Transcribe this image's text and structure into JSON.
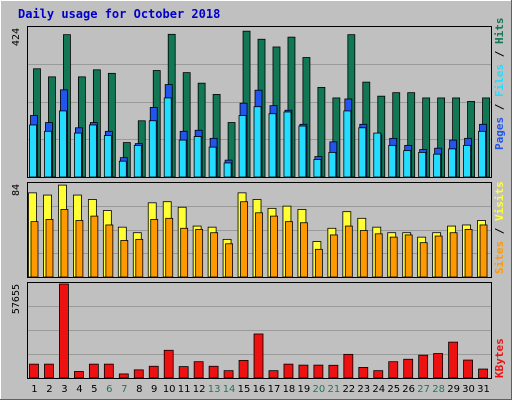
{
  "title": "Daily usage for October 2018",
  "colors": {
    "background": "#c0c0c0",
    "pages": "#2255ee",
    "files": "#22ddff",
    "hits": "#117755",
    "sites": "#ff9900",
    "visits": "#ffff33",
    "kbytes": "#ee1111",
    "weekday_label": "#000000",
    "weekend_label": "#227755"
  },
  "legend": {
    "top": {
      "pages": "Pages",
      "sep1": " / ",
      "files": "Files",
      "sep2": " / ",
      "hits": "Hits"
    },
    "middle": {
      "sites": "Sites",
      "sep": " / ",
      "visits": "Visits"
    },
    "bottom": {
      "kbytes": "KBytes"
    }
  },
  "chart_data": [
    {
      "type": "bar",
      "panel": "top",
      "ymax_label": "424",
      "ylim": [
        0,
        424
      ],
      "categories": [
        "1",
        "2",
        "3",
        "4",
        "5",
        "6",
        "7",
        "8",
        "9",
        "10",
        "11",
        "12",
        "13",
        "14",
        "15",
        "16",
        "17",
        "18",
        "19",
        "20",
        "21",
        "22",
        "23",
        "24",
        "25",
        "26",
        "27",
        "28",
        "29",
        "30",
        "31"
      ],
      "weekend": [
        "6",
        "7",
        "13",
        "14",
        "20",
        "21",
        "27",
        "28"
      ],
      "series": [
        {
          "name": "Hits",
          "values": [
            308,
            285,
            405,
            285,
            305,
            295,
            98,
            160,
            303,
            406,
            297,
            267,
            235,
            155,
            415,
            392,
            370,
            398,
            340,
            255,
            225,
            405,
            270,
            230,
            240,
            240,
            225,
            225,
            225,
            215,
            225
          ]
        },
        {
          "name": "Pages",
          "values": [
            175,
            155,
            248,
            140,
            155,
            130,
            55,
            95,
            198,
            263,
            130,
            133,
            110,
            48,
            210,
            247,
            203,
            190,
            150,
            58,
            100,
            222,
            150,
            120,
            110,
            90,
            78,
            82,
            105,
            110,
            150
          ]
        },
        {
          "name": "Files",
          "values": [
            148,
            130,
            188,
            125,
            148,
            118,
            45,
            90,
            160,
            225,
            105,
            115,
            85,
            40,
            175,
            200,
            180,
            185,
            145,
            50,
            70,
            188,
            140,
            125,
            90,
            75,
            70,
            65,
            80,
            90,
            130
          ]
        }
      ]
    },
    {
      "type": "bar",
      "panel": "middle",
      "ymax_label": "84",
      "ylim": [
        0,
        84
      ],
      "categories": [
        "1",
        "2",
        "3",
        "4",
        "5",
        "6",
        "7",
        "8",
        "9",
        "10",
        "11",
        "12",
        "13",
        "14",
        "15",
        "16",
        "17",
        "18",
        "19",
        "20",
        "21",
        "22",
        "23",
        "24",
        "25",
        "26",
        "27",
        "28",
        "29",
        "30",
        "31"
      ],
      "series": [
        {
          "name": "Visits",
          "values": [
            76,
            74,
            83,
            74,
            70,
            60,
            45,
            40,
            67,
            68,
            63,
            46,
            45,
            34,
            76,
            70,
            62,
            64,
            61,
            32,
            44,
            59,
            53,
            45,
            40,
            40,
            36,
            40,
            46,
            47,
            51
          ]
        },
        {
          "name": "Sites",
          "values": [
            50,
            52,
            61,
            51,
            55,
            47,
            33,
            34,
            52,
            53,
            44,
            43,
            40,
            30,
            68,
            58,
            55,
            50,
            49,
            25,
            38,
            46,
            42,
            39,
            36,
            38,
            31,
            37,
            40,
            43,
            47
          ]
        }
      ]
    },
    {
      "type": "bar",
      "panel": "bottom",
      "ymax_label": "57655",
      "ylim": [
        0,
        57655
      ],
      "categories": [
        "1",
        "2",
        "3",
        "4",
        "5",
        "6",
        "7",
        "8",
        "9",
        "10",
        "11",
        "12",
        "13",
        "14",
        "15",
        "16",
        "17",
        "18",
        "19",
        "20",
        "21",
        "22",
        "23",
        "24",
        "25",
        "26",
        "27",
        "28",
        "29",
        "30",
        "31"
      ],
      "series": [
        {
          "name": "KBytes",
          "values": [
            8500,
            8500,
            57655,
            4000,
            8500,
            8500,
            2500,
            5000,
            7200,
            17000,
            7000,
            10000,
            7200,
            4500,
            10800,
            27000,
            4500,
            8500,
            7900,
            7900,
            7800,
            14500,
            6500,
            4500,
            10000,
            11500,
            14000,
            15000,
            22000,
            11000,
            5500
          ]
        }
      ]
    }
  ]
}
